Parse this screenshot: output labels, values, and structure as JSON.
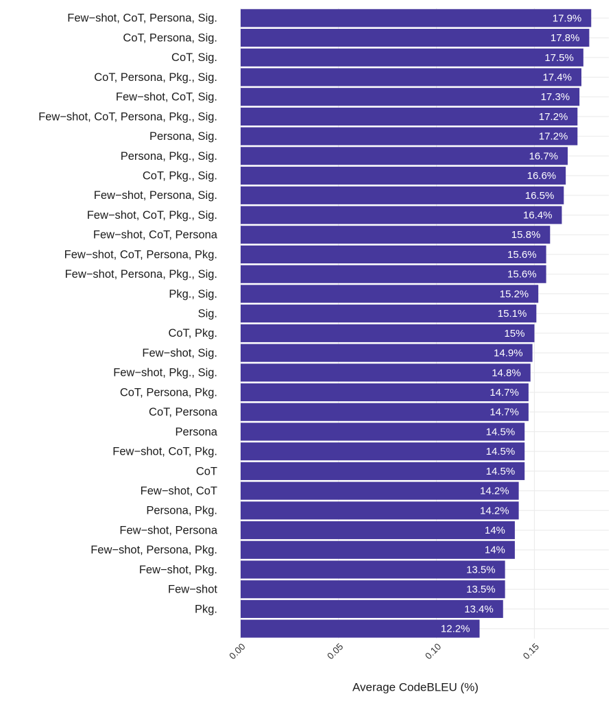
{
  "chart_data": {
    "type": "bar",
    "orientation": "horizontal",
    "x_label": "Average CodeBLEU (%)",
    "categories": [
      "Few−shot, CoT, Persona, Sig.",
      "CoT, Persona, Sig.",
      "CoT, Sig.",
      "CoT, Persona, Pkg., Sig.",
      "Few−shot, CoT, Sig.",
      "Few−shot, CoT, Persona, Pkg., Sig.",
      "Persona, Sig.",
      "Persona, Pkg., Sig.",
      "CoT, Pkg., Sig.",
      "Few−shot, Persona, Sig.",
      "Few−shot, CoT, Pkg., Sig.",
      "Few−shot, CoT, Persona",
      "Few−shot, CoT, Persona, Pkg.",
      "Few−shot, Persona, Pkg., Sig.",
      "Pkg., Sig.",
      "Sig.",
      "CoT, Pkg.",
      "Few−shot, Sig.",
      "Few−shot, Pkg., Sig.",
      "CoT, Persona, Pkg.",
      "CoT, Persona",
      "Persona",
      "Few−shot, CoT, Pkg.",
      "CoT",
      "Few−shot, CoT",
      "Persona, Pkg.",
      "Few−shot, Persona",
      "Few−shot, Persona, Pkg.",
      "Few−shot, Pkg.",
      "Few−shot",
      "Pkg.",
      null
    ],
    "values": [
      0.179,
      0.178,
      0.175,
      0.174,
      0.173,
      0.172,
      0.172,
      0.167,
      0.166,
      0.165,
      0.164,
      0.158,
      0.156,
      0.156,
      0.152,
      0.151,
      0.15,
      0.149,
      0.148,
      0.147,
      0.147,
      0.145,
      0.145,
      0.145,
      0.142,
      0.142,
      0.14,
      0.14,
      0.135,
      0.135,
      0.134,
      0.122
    ],
    "value_labels": [
      "17.9%",
      "17.8%",
      "17.5%",
      "17.4%",
      "17.3%",
      "17.2%",
      "17.2%",
      "16.7%",
      "16.6%",
      "16.5%",
      "16.4%",
      "15.8%",
      "15.6%",
      "15.6%",
      "15.2%",
      "15.1%",
      "15%",
      "14.9%",
      "14.8%",
      "14.7%",
      "14.7%",
      "14.5%",
      "14.5%",
      "14.5%",
      "14.2%",
      "14.2%",
      "14%",
      "14%",
      "13.5%",
      "13.5%",
      "13.4%",
      "12.2%"
    ],
    "color": "#46389c",
    "xlim": [
      0,
      0.188
    ],
    "xticks": [
      {
        "value": 0,
        "label": "0.00"
      },
      {
        "value": 0.05,
        "label": "0.05"
      },
      {
        "value": 0.1,
        "label": "0.10"
      },
      {
        "value": 0.15,
        "label": "0.15"
      }
    ],
    "grid": true
  }
}
